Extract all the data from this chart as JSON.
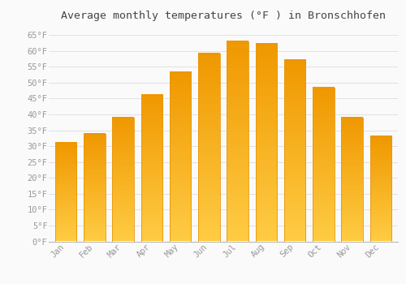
{
  "title": "Average monthly temperatures (°F ) in Bronschhofen",
  "months": [
    "Jan",
    "Feb",
    "Mar",
    "Apr",
    "May",
    "Jun",
    "Jul",
    "Aug",
    "Sep",
    "Oct",
    "Nov",
    "Dec"
  ],
  "values": [
    31.1,
    33.8,
    39.0,
    46.2,
    53.2,
    59.2,
    63.0,
    62.2,
    57.2,
    48.4,
    39.0,
    33.1
  ],
  "bar_color_bottom": "#FFD966",
  "bar_color_top": "#F5A623",
  "bar_edge_color": "#E8960A",
  "background_color": "#FAFAFA",
  "grid_color": "#DDDDDD",
  "tick_label_color": "#999999",
  "title_color": "#444444",
  "ylim": [
    0,
    68
  ],
  "yticks": [
    0,
    5,
    10,
    15,
    20,
    25,
    30,
    35,
    40,
    45,
    50,
    55,
    60,
    65
  ],
  "title_fontsize": 9.5,
  "tick_fontsize": 7.5,
  "bar_width": 0.75
}
